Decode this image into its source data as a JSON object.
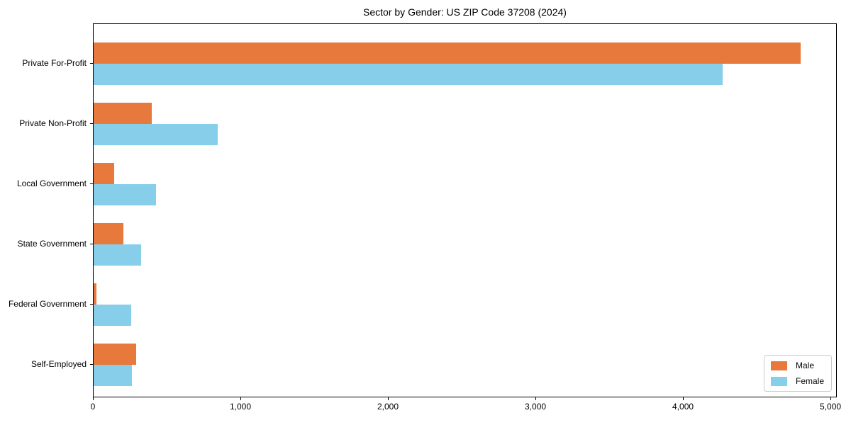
{
  "title": "Sector by Gender: US ZIP Code 37208 (2024)",
  "colors": {
    "male": "#e8793c",
    "female": "#87ceeb",
    "spine": "#000000",
    "legend_border": "#cccccc",
    "background": "#ffffff",
    "text": "#000000"
  },
  "legend": {
    "position": "lower right",
    "male_label": "Male",
    "female_label": "Female"
  },
  "chart_data": {
    "type": "bar",
    "orientation": "horizontal",
    "title": "Sector by Gender: US ZIP Code 37208 (2024)",
    "categories": [
      "Private For-Profit",
      "Private Non-Profit",
      "Local Government",
      "State Government",
      "Federal Government",
      "Self-Employed"
    ],
    "series": [
      {
        "name": "Male",
        "color": "#e8793c",
        "values": [
          4800,
          395,
          140,
          200,
          20,
          290
        ]
      },
      {
        "name": "Female",
        "color": "#87ceeb",
        "values": [
          4270,
          845,
          425,
          325,
          255,
          260
        ]
      }
    ],
    "xlabel": "",
    "ylabel": "",
    "xlim": [
      0,
      5043
    ],
    "x_ticks": [
      0,
      1000,
      2000,
      3000,
      4000,
      5000
    ],
    "x_tick_labels": [
      "0",
      "1,000",
      "2,000",
      "3,000",
      "4,000",
      "5,000"
    ],
    "grid": false,
    "legend_position": "lower right",
    "legend_entries": [
      "Male",
      "Female"
    ]
  }
}
